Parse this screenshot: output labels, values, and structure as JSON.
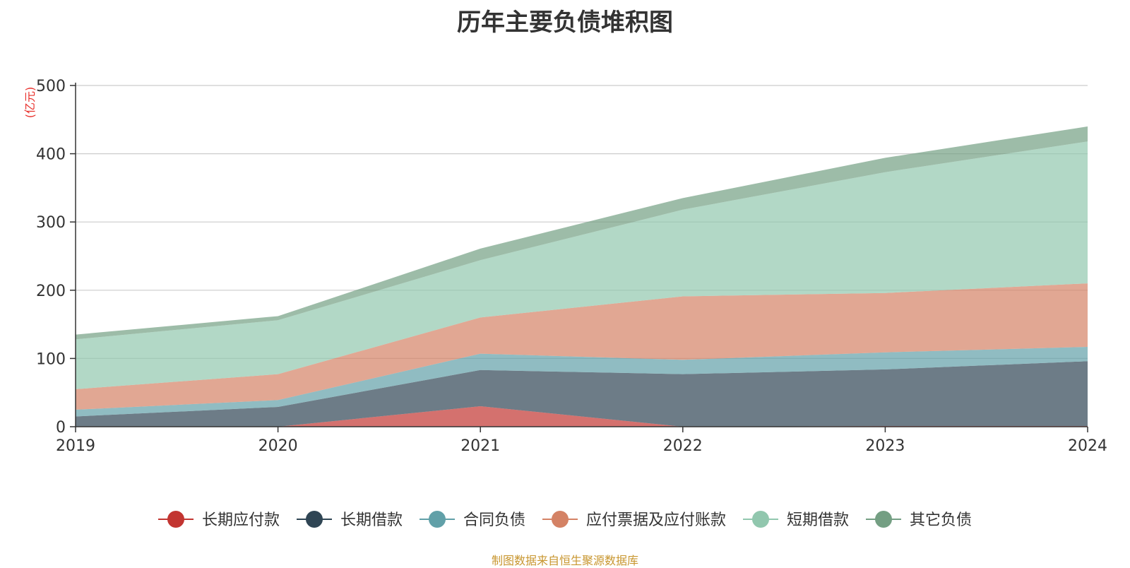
{
  "chart_data": {
    "type": "area",
    "stacked": true,
    "title": "历年主要负债堆积图",
    "ylabel": "(亿元)",
    "xlabel": "",
    "x": [
      "2019",
      "2020",
      "2021",
      "2022",
      "2023",
      "2024"
    ],
    "ylim": [
      0,
      500
    ],
    "yticks": [
      0,
      100,
      200,
      300,
      400,
      500
    ],
    "grid": true,
    "legend_position": "bottom",
    "series": [
      {
        "name": "长期应付款",
        "color": "#c23531",
        "values": [
          0,
          0,
          30,
          0,
          1,
          1
        ]
      },
      {
        "name": "长期借款",
        "color": "#2f4554",
        "values": [
          15,
          29,
          53,
          77,
          83,
          95
        ]
      },
      {
        "name": "合同负债",
        "color": "#61a0a8",
        "values": [
          10,
          10,
          24,
          21,
          25,
          21
        ]
      },
      {
        "name": "应付票据及应付账款",
        "color": "#d48265",
        "values": [
          30,
          38,
          53,
          93,
          87,
          93
        ]
      },
      {
        "name": "短期借款",
        "color": "#91c7ae",
        "values": [
          73,
          79,
          84,
          127,
          177,
          208
        ]
      },
      {
        "name": "其它负债",
        "color": "#749f83",
        "values": [
          7,
          6,
          17,
          17,
          21,
          22
        ]
      }
    ]
  },
  "footer": {
    "source": "制图数据来自恒生聚源数据库"
  }
}
